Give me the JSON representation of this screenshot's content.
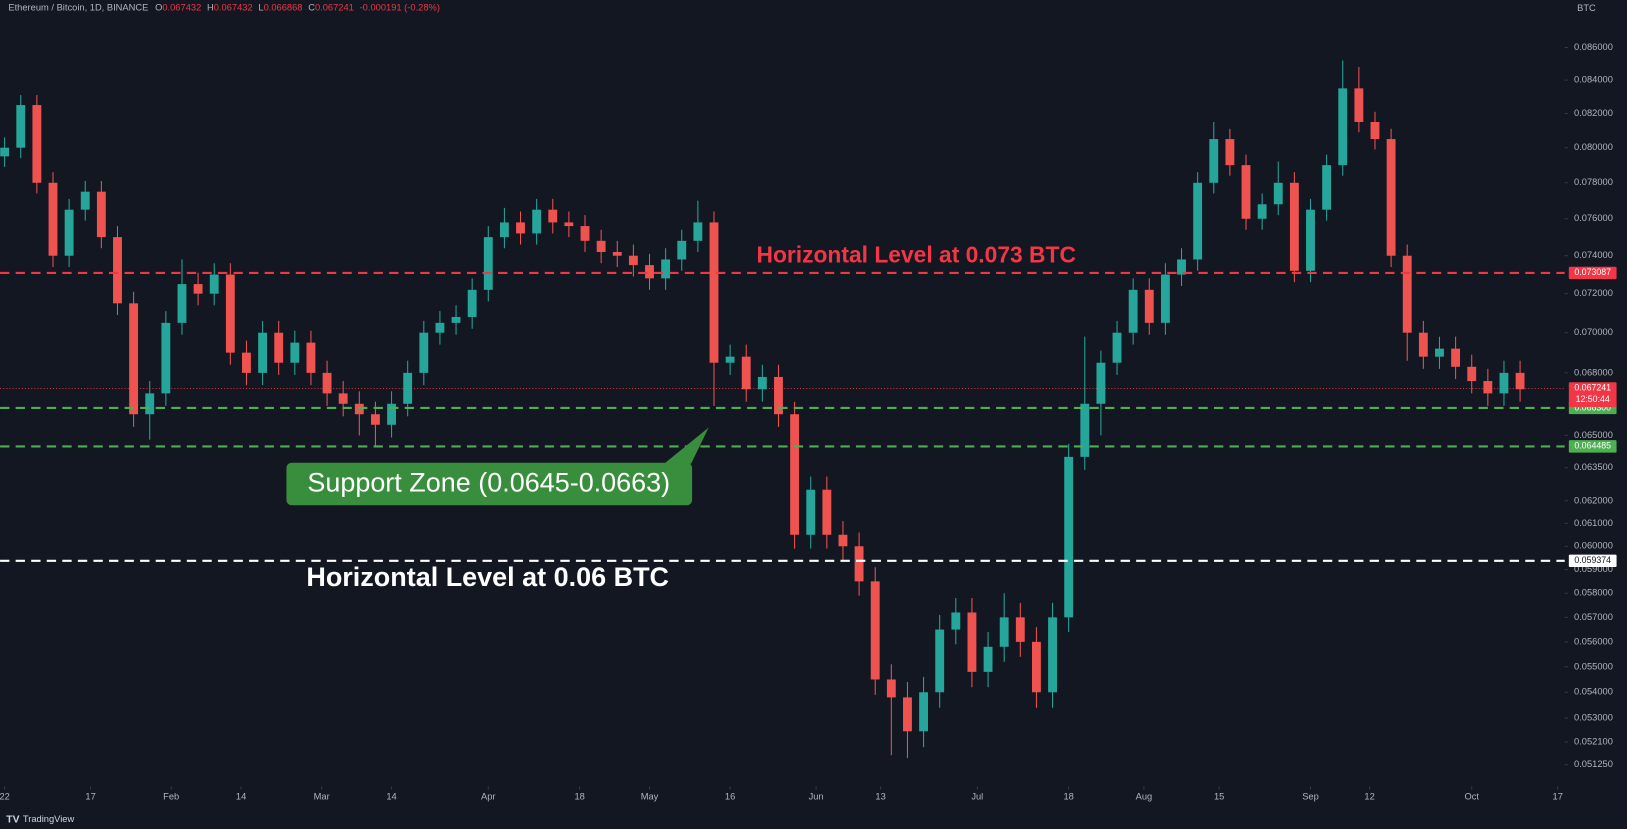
{
  "header": {
    "symbol": "Ethereum / Bitcoin, 1D, BINANCE",
    "fields": [
      {
        "key": "O",
        "value": 0.067432
      },
      {
        "key": "H",
        "value": 0.067432
      },
      {
        "key": "L",
        "value": 0.066868
      },
      {
        "key": "C",
        "value": 0.067241
      }
    ],
    "change": -0.000191,
    "change_pct": "(-0.28%)"
  },
  "chart_data": {
    "type": "candlestick",
    "axis_unit": "BTC",
    "log_scale": true,
    "up_color": "#26a69a",
    "down_color": "#ef5350",
    "x": [
      0,
      3,
      6,
      9,
      12,
      15,
      18,
      21,
      24,
      27,
      30,
      33,
      36,
      39,
      42,
      45,
      48,
      51,
      54,
      57,
      60,
      63,
      66,
      69,
      72,
      75,
      78,
      81,
      84,
      87,
      90,
      93,
      96,
      99,
      102,
      105,
      108,
      111,
      114,
      117,
      120,
      123,
      126,
      129,
      132,
      135,
      138,
      141,
      144,
      147,
      150,
      153,
      156,
      159,
      162,
      165,
      168,
      171,
      174,
      177,
      180,
      183,
      186,
      189,
      192,
      195,
      198,
      201,
      204,
      207,
      210,
      213,
      216,
      219,
      222,
      225,
      228,
      231,
      234,
      237,
      240,
      243,
      246,
      249,
      252,
      255,
      258,
      261,
      264,
      267,
      270,
      273,
      276,
      279,
      282
    ],
    "open": [
      0.0795,
      0.08,
      0.0825,
      0.078,
      0.074,
      0.0765,
      0.0775,
      0.075,
      0.0715,
      0.066,
      0.067,
      0.0705,
      0.0725,
      0.072,
      0.073,
      0.069,
      0.068,
      0.07,
      0.0685,
      0.0695,
      0.068,
      0.067,
      0.0665,
      0.066,
      0.0655,
      0.0665,
      0.068,
      0.07,
      0.0705,
      0.0708,
      0.0722,
      0.075,
      0.0758,
      0.0752,
      0.0765,
      0.0758,
      0.0756,
      0.0748,
      0.0742,
      0.074,
      0.0735,
      0.0728,
      0.0738,
      0.0748,
      0.0758,
      0.0685,
      0.0688,
      0.0672,
      0.0678,
      0.066,
      0.0605,
      0.0625,
      0.0605,
      0.06,
      0.0585,
      0.0545,
      0.0538,
      0.0525,
      0.054,
      0.0565,
      0.0572,
      0.0548,
      0.0558,
      0.057,
      0.056,
      0.054,
      0.057,
      0.064,
      0.0665,
      0.0685,
      0.07,
      0.0722,
      0.0705,
      0.073,
      0.0738,
      0.078,
      0.0805,
      0.079,
      0.076,
      0.0768,
      0.078,
      0.0732,
      0.0765,
      0.079,
      0.0835,
      0.0815,
      0.0805,
      0.074,
      0.07,
      0.0688,
      0.0692,
      0.0683,
      0.0676,
      0.067,
      0.068
    ],
    "high": [
      0.0806,
      0.0831,
      0.0831,
      0.0786,
      0.0771,
      0.0781,
      0.0781,
      0.0756,
      0.0721,
      0.0676,
      0.0711,
      0.0738,
      0.0731,
      0.0736,
      0.0736,
      0.0696,
      0.0706,
      0.0706,
      0.0701,
      0.0701,
      0.0686,
      0.0676,
      0.0671,
      0.0666,
      0.0671,
      0.0686,
      0.0706,
      0.0711,
      0.0714,
      0.0728,
      0.0756,
      0.0766,
      0.0764,
      0.0771,
      0.0771,
      0.0764,
      0.0762,
      0.0754,
      0.0748,
      0.0746,
      0.0741,
      0.0744,
      0.0754,
      0.077,
      0.0764,
      0.0694,
      0.0694,
      0.0684,
      0.0684,
      0.0666,
      0.0631,
      0.0631,
      0.0611,
      0.0606,
      0.0591,
      0.0551,
      0.0544,
      0.0546,
      0.0571,
      0.0578,
      0.0578,
      0.0564,
      0.058,
      0.0576,
      0.0566,
      0.0576,
      0.0646,
      0.0698,
      0.0691,
      0.0706,
      0.0728,
      0.0728,
      0.0736,
      0.0744,
      0.0786,
      0.0815,
      0.0811,
      0.0796,
      0.0774,
      0.0792,
      0.0786,
      0.0771,
      0.0796,
      0.0852,
      0.0848,
      0.0821,
      0.0811,
      0.0746,
      0.0706,
      0.0698,
      0.0698,
      0.0689,
      0.0682,
      0.0686,
      0.0686
    ],
    "low": [
      0.0789,
      0.0794,
      0.0774,
      0.0734,
      0.0734,
      0.0759,
      0.0744,
      0.0709,
      0.0654,
      0.0648,
      0.0664,
      0.0699,
      0.0714,
      0.0714,
      0.0684,
      0.0674,
      0.0674,
      0.0679,
      0.0679,
      0.0674,
      0.0664,
      0.0659,
      0.065,
      0.0645,
      0.0649,
      0.0659,
      0.0674,
      0.0694,
      0.0699,
      0.0702,
      0.0716,
      0.0744,
      0.0746,
      0.0746,
      0.0752,
      0.075,
      0.0742,
      0.0736,
      0.0734,
      0.0729,
      0.0722,
      0.0722,
      0.0732,
      0.0742,
      0.0664,
      0.0679,
      0.0666,
      0.0666,
      0.0654,
      0.0599,
      0.0599,
      0.0599,
      0.0594,
      0.0579,
      0.0539,
      0.0516,
      0.0515,
      0.0519,
      0.0534,
      0.0559,
      0.0542,
      0.0542,
      0.0552,
      0.0554,
      0.0534,
      0.0534,
      0.0564,
      0.0634,
      0.065,
      0.0679,
      0.0694,
      0.0699,
      0.0699,
      0.0724,
      0.0732,
      0.0774,
      0.0784,
      0.0754,
      0.0754,
      0.0762,
      0.0726,
      0.0726,
      0.0759,
      0.0784,
      0.0809,
      0.0799,
      0.0734,
      0.0686,
      0.0682,
      0.0682,
      0.0677,
      0.067,
      0.0664,
      0.0664,
      0.0666
    ],
    "close": [
      0.08,
      0.0825,
      0.078,
      0.074,
      0.0765,
      0.0775,
      0.075,
      0.0715,
      0.066,
      0.067,
      0.0705,
      0.0725,
      0.072,
      0.073,
      0.069,
      0.068,
      0.07,
      0.0685,
      0.0695,
      0.068,
      0.067,
      0.0665,
      0.066,
      0.0655,
      0.0665,
      0.068,
      0.07,
      0.0705,
      0.0708,
      0.0722,
      0.075,
      0.0758,
      0.0752,
      0.0765,
      0.0758,
      0.0756,
      0.0748,
      0.0742,
      0.074,
      0.0735,
      0.0728,
      0.0738,
      0.0748,
      0.0758,
      0.0685,
      0.0688,
      0.0672,
      0.0678,
      0.066,
      0.0605,
      0.0625,
      0.0605,
      0.06,
      0.0585,
      0.0545,
      0.0538,
      0.0525,
      0.054,
      0.0565,
      0.0572,
      0.0548,
      0.0558,
      0.057,
      0.056,
      0.054,
      0.057,
      0.064,
      0.0665,
      0.0685,
      0.07,
      0.0722,
      0.0705,
      0.073,
      0.0738,
      0.078,
      0.0805,
      0.079,
      0.076,
      0.0768,
      0.078,
      0.0732,
      0.0765,
      0.079,
      0.0835,
      0.0815,
      0.0805,
      0.074,
      0.07,
      0.0688,
      0.0692,
      0.0683,
      0.0676,
      0.067,
      0.068,
      0.0672
    ],
    "xlim": [
      -0.85,
      290.3
    ],
    "xticks": [
      {
        "value": 0,
        "label": "22"
      },
      {
        "value": 16,
        "label": "17"
      },
      {
        "value": 31,
        "label": "Feb"
      },
      {
        "value": 44,
        "label": "14"
      },
      {
        "value": 59,
        "label": "Mar"
      },
      {
        "value": 72,
        "label": "14"
      },
      {
        "value": 90,
        "label": "Apr"
      },
      {
        "value": 107,
        "label": "18"
      },
      {
        "value": 120,
        "label": "May"
      },
      {
        "value": 135,
        "label": "16"
      },
      {
        "value": 151,
        "label": "Jun"
      },
      {
        "value": 163,
        "label": "13"
      },
      {
        "value": 181,
        "label": "Jul"
      },
      {
        "value": 198,
        "label": "18"
      },
      {
        "value": 212,
        "label": "Aug"
      },
      {
        "value": 226,
        "label": "15"
      },
      {
        "value": 243,
        "label": "Sep"
      },
      {
        "value": 254,
        "label": "12"
      },
      {
        "value": 273,
        "label": "Oct"
      },
      {
        "value": 289,
        "label": "17"
      }
    ],
    "ylim": [
      0.05045,
      0.089
    ],
    "yticks": [
      {
        "value": 0.086,
        "label": "0.086000"
      },
      {
        "value": 0.084,
        "label": "0.084000"
      },
      {
        "value": 0.082,
        "label": "0.082000"
      },
      {
        "value": 0.08,
        "label": "0.080000"
      },
      {
        "value": 0.078,
        "label": "0.078000"
      },
      {
        "value": 0.076,
        "label": "0.076000"
      },
      {
        "value": 0.074,
        "label": "0.074000"
      },
      {
        "value": 0.072,
        "label": "0.072000"
      },
      {
        "value": 0.07,
        "label": "0.070000"
      },
      {
        "value": 0.068,
        "label": "0.068000"
      },
      {
        "value": 0.065,
        "label": "0.065000"
      },
      {
        "value": 0.0635,
        "label": "0.063500"
      },
      {
        "value": 0.062,
        "label": "0.062000"
      },
      {
        "value": 0.061,
        "label": "0.061000"
      },
      {
        "value": 0.06,
        "label": "0.060000"
      },
      {
        "value": 0.059,
        "label": "0.059000"
      },
      {
        "value": 0.058,
        "label": "0.058000"
      },
      {
        "value": 0.057,
        "label": "0.057000"
      },
      {
        "value": 0.056,
        "label": "0.056000"
      },
      {
        "value": 0.055,
        "label": "0.055000"
      },
      {
        "value": 0.054,
        "label": "0.054000"
      },
      {
        "value": 0.053,
        "label": "0.053000"
      },
      {
        "value": 0.0521,
        "label": "0.052100"
      },
      {
        "value": 0.05125,
        "label": "0.051250"
      }
    ],
    "levels": [
      {
        "value": 0.073087,
        "label": "0.073087",
        "color": "#f23645",
        "text_color": "#ffffff"
      },
      {
        "value": 0.0663,
        "label": "0.066300",
        "color": "#4caf50",
        "text_color": "#ffffff"
      },
      {
        "value": 0.064485,
        "label": "0.064485",
        "color": "#4caf50",
        "text_color": "#ffffff"
      },
      {
        "value": 0.059374,
        "label": "0.059374",
        "color": "#ffffff",
        "text_color": "#131722"
      }
    ],
    "current_price": {
      "value": 0.067241,
      "label": "0.067241",
      "countdown": "12:50:44",
      "color": "#f23645"
    },
    "annotations": [
      {
        "text": "Horizontal Level at 0.073 BTC",
        "color": "#f23645"
      },
      {
        "text": "Support Zone (0.0645-0.0663)",
        "color": "#ffffff",
        "background": "#388e3c"
      },
      {
        "text": "Horizontal Level at 0.06 BTC",
        "color": "#ffffff"
      }
    ]
  },
  "footer": {
    "brand": "TradingView"
  }
}
